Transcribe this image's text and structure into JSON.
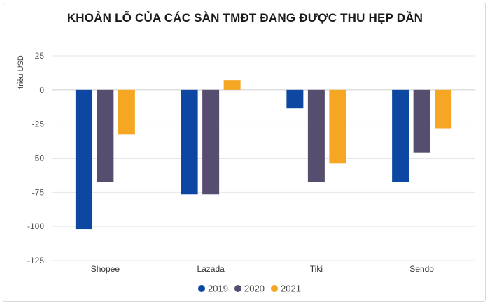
{
  "chart_data": {
    "type": "bar",
    "title": "KHOẢN LỖ CỦA CÁC SÀN TMĐT ĐANG ĐƯỢC THU HẸP DẦN",
    "ylabel": "triệu USD",
    "xlabel": "",
    "categories": [
      "Shopee",
      "Lazada",
      "Tiki",
      "Sendo"
    ],
    "series": [
      {
        "name": "2019",
        "color": "#0d47a1",
        "values": [
          -102,
          -76.5,
          -13.5,
          -67.5
        ]
      },
      {
        "name": "2020",
        "color": "#574d6e",
        "values": [
          -67.5,
          -76.5,
          -67.5,
          -46
        ]
      },
      {
        "name": "2021",
        "color": "#f5a623",
        "values": [
          -32.5,
          7,
          -54,
          -28
        ]
      }
    ],
    "ylim": [
      -125,
      25
    ],
    "yticks": [
      25,
      0,
      -25,
      -50,
      -75,
      -100,
      -125
    ],
    "grid": true,
    "legend_position": "bottom"
  }
}
